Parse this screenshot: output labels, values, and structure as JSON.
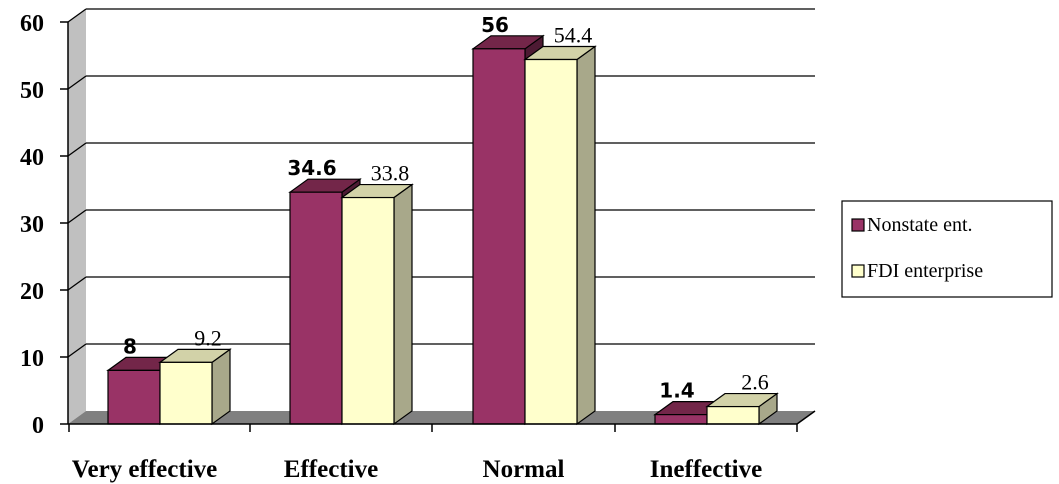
{
  "chart_data": {
    "type": "bar",
    "title": "",
    "xlabel": "",
    "ylabel": "",
    "categories": [
      "Very effective",
      "Effective",
      "Normal",
      "Ineffective"
    ],
    "ylim": [
      0,
      60
    ],
    "yticks": [
      "0",
      "10",
      "20",
      "30",
      "40",
      "50",
      "60"
    ],
    "grid": true,
    "legend_position": "right",
    "series": [
      {
        "name": "Nonstate ent.",
        "values": [
          8,
          34.6,
          56,
          1.4
        ],
        "labels": [
          "8",
          "34.6",
          "56",
          "1.4"
        ],
        "color": "#993366"
      },
      {
        "name": "FDI enterprise",
        "values": [
          9.2,
          33.8,
          54.4,
          2.6
        ],
        "labels": [
          "9.2",
          "33.8",
          "54.4",
          "2.6"
        ],
        "color": "#ffffcc"
      }
    ],
    "colors": {
      "back_wall": "#c0c0c0",
      "side_wall": "#808080",
      "floor": "#808080",
      "s0_top": "#732649",
      "s0_side": "#4d1a33",
      "s1_top": "#d2d2a8",
      "s1_side": "#a8a88a"
    }
  }
}
